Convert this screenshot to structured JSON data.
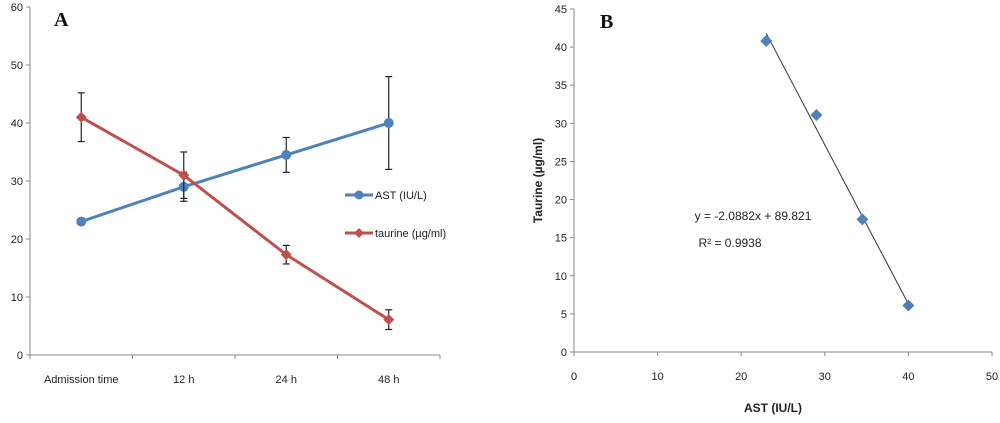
{
  "chart_data": [
    {
      "panel": "A",
      "type": "line",
      "categories": [
        "Admission time",
        "12 h",
        "24 h",
        "48 h"
      ],
      "ylim": [
        0,
        60
      ],
      "yticks": [
        0,
        10,
        20,
        30,
        40,
        50,
        60
      ],
      "grid": false,
      "legend_position": "right",
      "series": [
        {
          "name": "AST (IU/L)",
          "values": [
            23,
            29,
            34.5,
            40
          ],
          "errors": [
            0.5,
            2.5,
            3,
            8
          ],
          "color": "#4F81BD",
          "marker": "circle"
        },
        {
          "name": "taurine (µg/ml)",
          "values": [
            41,
            31,
            17.3,
            6.1
          ],
          "errors": [
            4.2,
            4,
            1.6,
            1.7
          ],
          "color": "#C0504D",
          "marker": "diamond"
        }
      ]
    },
    {
      "panel": "B",
      "type": "scatter",
      "xlabel": "AST (IU/L)",
      "ylabel": "Taurine (µg/ml)",
      "xlim": [
        0,
        50
      ],
      "ylim": [
        0,
        45
      ],
      "xticks": [
        0,
        10,
        20,
        30,
        40,
        50
      ],
      "yticks": [
        0,
        5,
        10,
        15,
        20,
        25,
        30,
        35,
        40,
        45
      ],
      "grid": false,
      "points": [
        {
          "x": 23,
          "y": 40.8
        },
        {
          "x": 29,
          "y": 31.1
        },
        {
          "x": 34.5,
          "y": 17.4
        },
        {
          "x": 40,
          "y": 6.1
        }
      ],
      "marker_color": "#4F81BD",
      "trendline": {
        "slope": -2.0882,
        "intercept": 89.821,
        "x_range": [
          23,
          40
        ]
      },
      "equation": "y = -2.0882x + 89.821",
      "r_squared": "R² = 0.9938"
    }
  ]
}
